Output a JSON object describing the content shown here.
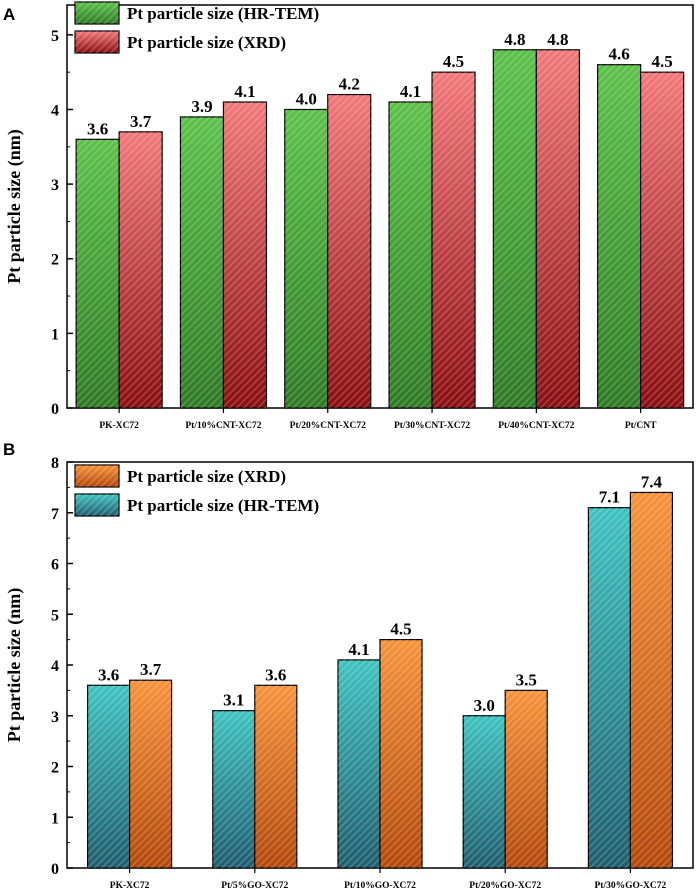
{
  "chart_data": [
    {
      "panel": "A",
      "type": "bar",
      "ylabel": "Pt particle size (nm)",
      "xlabel": "",
      "ylim": [
        0,
        5.4
      ],
      "yticks": [
        0,
        1,
        2,
        3,
        4,
        5
      ],
      "categories": [
        "PK-XC72",
        "Pt/10%CNT-XC72",
        "Pt/20%CNT-XC72",
        "Pt/30%CNT-XC72",
        "Pt/40%CNT-XC72",
        "Pt/CNT"
      ],
      "series": [
        {
          "name": "Pt particle size (HR-TEM)",
          "values": [
            3.6,
            3.9,
            4.0,
            4.1,
            4.8,
            4.6
          ],
          "labels": [
            "3.6",
            "3.9",
            "4.0",
            "4.1",
            "4.8",
            "4.6"
          ],
          "color_top": "#5cc24a",
          "color_bottom": "#2f7a25"
        },
        {
          "name": "Pt particle size (XRD)",
          "values": [
            3.7,
            4.1,
            4.2,
            4.5,
            4.8,
            4.5
          ],
          "labels": [
            "3.7",
            "4.1",
            "4.2",
            "4.5",
            "4.8",
            "4.5"
          ],
          "color_top": "#f2787a",
          "color_bottom": "#8a0e12"
        }
      ],
      "legend_order": [
        0,
        1
      ],
      "legend_position": "top-left"
    },
    {
      "panel": "B",
      "type": "bar",
      "ylabel": "Pt particle size (nm)",
      "xlabel": "",
      "ylim": [
        0,
        8
      ],
      "yticks": [
        0,
        1,
        2,
        3,
        4,
        5,
        6,
        7,
        8
      ],
      "categories": [
        "PK-XC72",
        "Pt/5%GO-XC72",
        "Pt/10%GO-XC72",
        "Pt/20%GO-XC72",
        "Pt/30%GO-XC72"
      ],
      "series": [
        {
          "name": "Pt particle size (HR-TEM)",
          "values": [
            3.6,
            3.1,
            4.1,
            3.0,
            7.1
          ],
          "labels": [
            "3.6",
            "3.1",
            "4.1",
            "3.0",
            "7.1"
          ],
          "color_top": "#3fc3c0",
          "color_bottom": "#1f5e6e"
        },
        {
          "name": "Pt particle size (XRD)",
          "values": [
            3.7,
            3.6,
            4.5,
            3.5,
            7.4
          ],
          "labels": [
            "3.7",
            "3.6",
            "4.5",
            "3.5",
            "7.4"
          ],
          "color_top": "#f7923a",
          "color_bottom": "#b4480c"
        }
      ],
      "legend_order": [
        1,
        0
      ],
      "legend_position": "top-left"
    }
  ]
}
